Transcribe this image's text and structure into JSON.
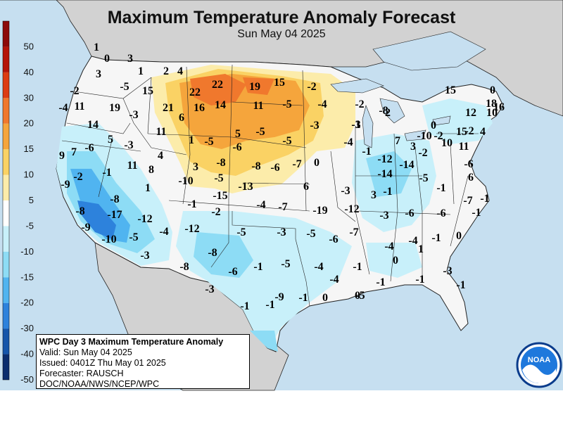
{
  "header": {
    "title": "Maximum Temperature Anomaly Forecast",
    "subtitle": "Sun May 04 2025"
  },
  "colorbar": {
    "ticks": [
      "50",
      "40",
      "30",
      "20",
      "15",
      "10",
      "5",
      "-5",
      "-10",
      "-15",
      "-20",
      "-30",
      "-40",
      "-50"
    ],
    "colors": [
      "#8c0a0a",
      "#b4140a",
      "#dc3c14",
      "#f0782d",
      "#f5a53c",
      "#fad264",
      "#fcecaa",
      "#ffffff",
      "#c8f0fa",
      "#8ddcf5",
      "#50b4f0",
      "#2d82dc",
      "#1455aa",
      "#0a2d6e"
    ]
  },
  "map_colors": {
    "ocean": "#c6dff0",
    "foreign_land": "#d2d2d2",
    "us_land": "#f6f6f6",
    "warm": [
      "#fcecaa",
      "#fad264",
      "#f5a53c",
      "#f0782d"
    ],
    "cool": [
      "#c8f0fa",
      "#8ddcf5",
      "#50b4f0",
      "#2d82dc"
    ]
  },
  "anomalies": [
    "1",
    "0",
    "3",
    "3",
    "1",
    "2",
    "4",
    "-2",
    "-5",
    "15",
    "22",
    "22",
    "19",
    "15",
    "-2",
    "-4",
    "11",
    "19",
    "21",
    "16",
    "14",
    "11",
    "-5",
    "-4",
    "-2",
    "15",
    "0",
    "-3",
    "6",
    "18",
    "14",
    "11",
    "5",
    "-5",
    "-3",
    "-3",
    "-8",
    "12",
    "16",
    "10",
    "5",
    "1",
    "-5",
    "-5",
    "-1",
    "2",
    "0",
    "-10",
    "-2",
    "15",
    "4",
    "-2",
    "-6",
    "-3",
    "-6",
    "-4",
    "-1",
    "7",
    "3",
    "10",
    "11",
    "9",
    "7",
    "4",
    "3",
    "-8",
    "-8",
    "-6",
    "-7",
    "0",
    "-12",
    "-14",
    "-6",
    "-2",
    "11",
    "8",
    "-2",
    "-1",
    "-14",
    "-5",
    "6",
    "-9",
    "-10",
    "-5",
    "-13",
    "6",
    "-3",
    "3",
    "-1",
    "-1",
    "1",
    "-8",
    "-15",
    "-4",
    "-7",
    "-7",
    "-1",
    "-1",
    "-19",
    "-12",
    "-3",
    "-6",
    "-6",
    "-1",
    "-8",
    "-17",
    "-12",
    "-2",
    "-5",
    "-3",
    "-5",
    "-6",
    "-7",
    "-4",
    "-4",
    "-1",
    "0",
    "-9",
    "-10",
    "-5",
    "-4",
    "-12",
    "-8",
    "-3",
    "-1",
    "-5",
    "-4",
    "-1",
    "0",
    "1",
    "-3",
    "-8",
    "-6",
    "-4",
    "-1",
    "-1",
    "-1",
    "-3",
    "-1",
    "-1",
    "-9",
    "-1",
    "0",
    "0",
    "-5"
  ],
  "infobox": {
    "line1": "WPC Day 3 Maximum Temperature Anomaly",
    "line2": "Valid: Sun May 04 2025",
    "line3": "Issued: 0401Z Thu May 01 2025",
    "line4": "Forecaster: RAUSCH",
    "line5": "DOC/NOAA/NWS/NCEP/WPC"
  },
  "logo": {
    "text": "NOAA",
    "ring": "#0a3c8c",
    "sky": "#1e78dc",
    "wave": "#ffffff"
  }
}
